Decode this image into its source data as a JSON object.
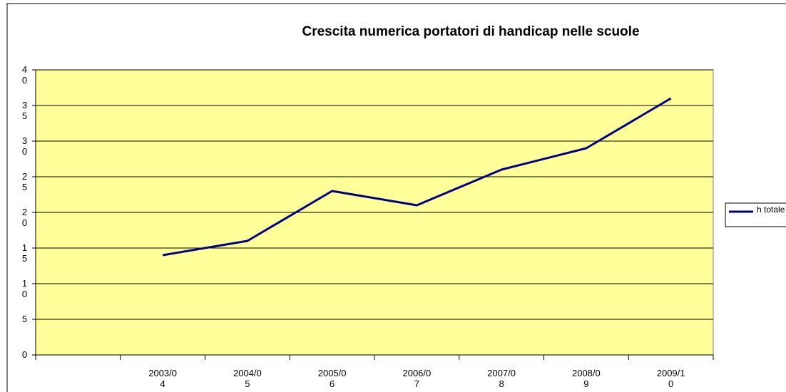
{
  "chart_data": {
    "type": "line",
    "title": "Crescita numerica portatori di handicap nelle scuole",
    "categories": [
      null,
      "2003/04",
      "2004/05",
      "2005/06",
      "2006/07",
      "2007/08",
      "2008/09",
      "2009/10"
    ],
    "series": [
      {
        "name": "h totale",
        "color": "#000080",
        "values": [
          null,
          14,
          16,
          23,
          21,
          26,
          29,
          36
        ]
      }
    ],
    "ylim": [
      0,
      40
    ],
    "yticks": [
      0,
      5,
      10,
      15,
      20,
      25,
      30,
      35,
      40
    ],
    "grid": true,
    "legend": "right",
    "background": "#ffff99"
  }
}
